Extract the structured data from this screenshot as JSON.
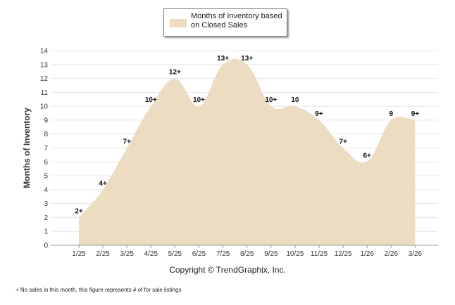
{
  "chart_data": {
    "type": "area",
    "title": "",
    "xlabel": "Copyright © TrendGraphix, Inc.",
    "ylabel": "Months of Inventory",
    "ylim": [
      0,
      14
    ],
    "grid": true,
    "legend": {
      "placement": "top-center",
      "label": "Months of Inventory based on Closed Sales"
    },
    "fill_color": "#ecdcc1",
    "categories": [
      "1/25",
      "2/25",
      "3/25",
      "4/25",
      "5/25",
      "6/25",
      "7/25",
      "8/25",
      "9/25",
      "10/25",
      "11/25",
      "12/25",
      "1/26",
      "2/26",
      "3/26"
    ],
    "series": [
      {
        "name": "Months of Inventory based on Closed Sales",
        "values": [
          2,
          4,
          7,
          10,
          12,
          10,
          13,
          13,
          10,
          10,
          9,
          7,
          6,
          9,
          9
        ],
        "labels": [
          "2+",
          "4+",
          "7+",
          "10+",
          "12+",
          "10+",
          "13+",
          "13+",
          "10+",
          "10",
          "9+",
          "7+",
          "6+",
          "9",
          "9+"
        ]
      }
    ],
    "yticks": [
      "0",
      "1",
      "2",
      "3",
      "4",
      "5",
      "6",
      "7",
      "8",
      "9",
      "10",
      "11",
      "12",
      "13",
      "14"
    ]
  },
  "footnote": "+  No sales in this month, this figure represents # of for sale listings"
}
